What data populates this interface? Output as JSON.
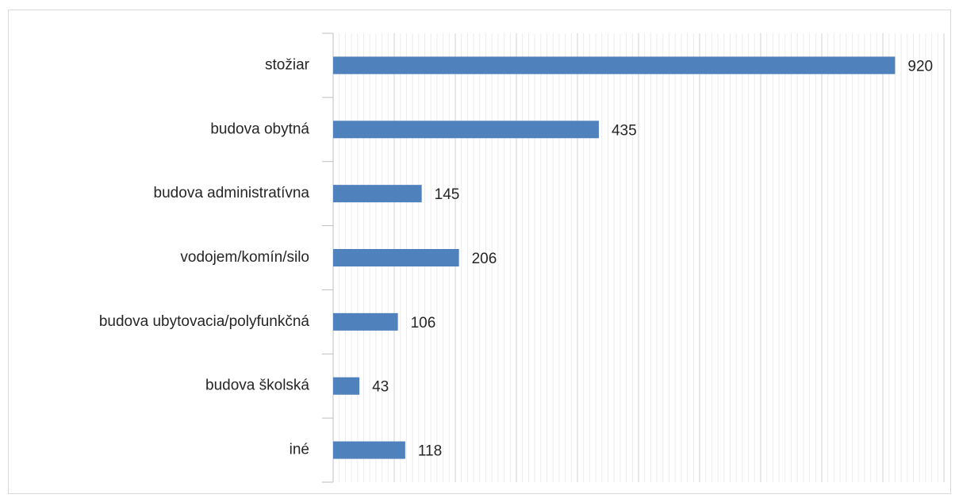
{
  "chart_data": {
    "type": "hbar",
    "categories": [
      "stožiar",
      "budova obytná",
      "budova administratívna",
      "vodojem/komín/silo",
      "budova ubytovacia/polyfunkčná",
      "budova školská",
      "iné"
    ],
    "values": [
      920,
      435,
      145,
      206,
      106,
      43,
      118
    ],
    "color": "#4f81bd",
    "xlim": [
      0,
      1000
    ],
    "xticks": [
      0,
      100,
      200,
      300,
      400,
      500,
      600,
      700,
      800,
      900,
      1000
    ],
    "xminorticks": [
      0,
      10,
      20,
      30,
      40,
      50,
      60,
      70,
      80,
      90,
      100,
      110,
      120,
      130,
      140,
      150,
      160,
      170,
      180,
      190,
      200,
      210,
      220,
      230,
      240,
      250,
      260,
      270,
      280,
      290,
      300,
      310,
      320,
      330,
      340,
      350,
      360,
      370,
      380,
      390,
      400,
      410,
      420,
      430,
      440,
      450,
      460,
      470,
      480,
      490,
      500,
      510,
      520,
      530,
      540,
      550,
      560,
      570,
      580,
      590,
      600,
      610,
      620,
      630,
      640,
      650,
      660,
      670,
      680,
      690,
      700,
      710,
      720,
      730,
      740,
      750,
      760,
      770,
      780,
      790,
      800,
      810,
      820,
      830,
      840,
      850,
      860,
      870,
      880,
      890,
      900,
      910,
      920,
      930,
      940,
      950,
      960,
      970,
      980,
      990,
      1000
    ],
    "grid": true
  }
}
